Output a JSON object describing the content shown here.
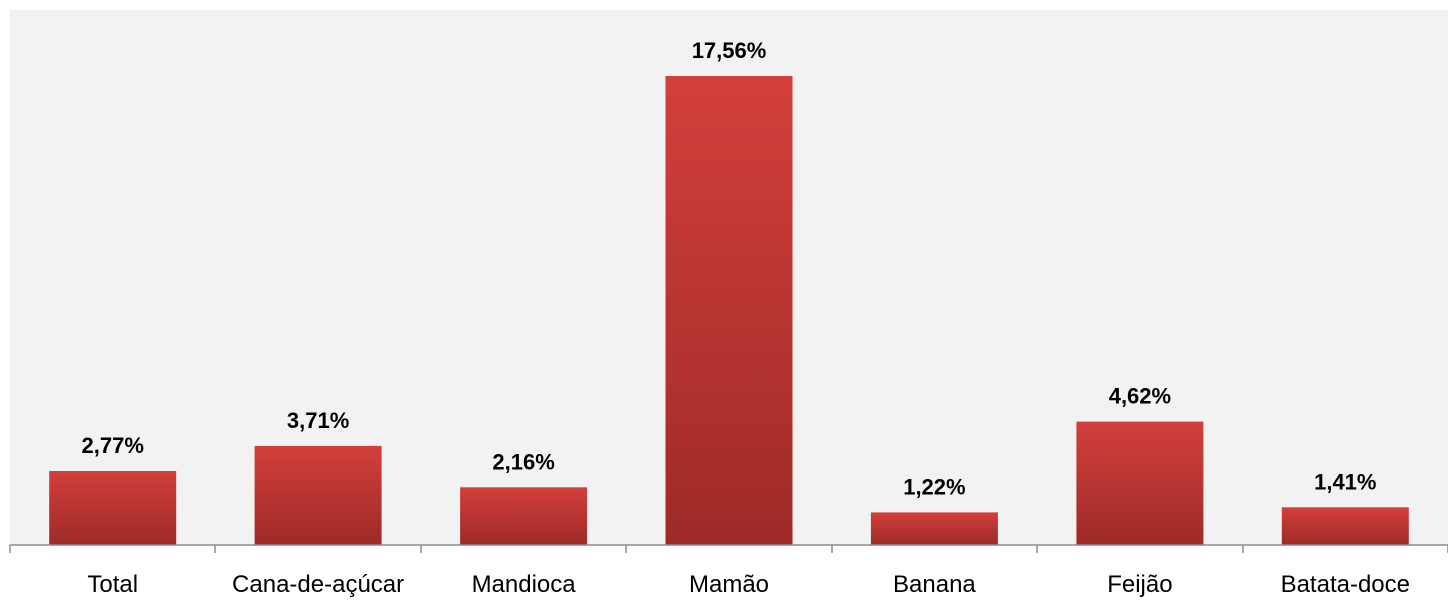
{
  "chart_data": {
    "type": "bar",
    "categories": [
      "Total",
      "Cana-de-açúcar",
      "Mandioca",
      "Mamão",
      "Banana",
      "Feijão",
      "Batata-doce"
    ],
    "values": [
      2.77,
      3.71,
      2.16,
      17.56,
      1.22,
      4.62,
      1.41
    ],
    "value_labels": [
      "2,77%",
      "3,71%",
      "2,16%",
      "17,56%",
      "1,22%",
      "4,62%",
      "1,41%"
    ],
    "unit": "%",
    "grid": false,
    "legend": "none",
    "ylim": [
      0,
      19
    ],
    "colors": {
      "plot_background": "#f2f2f2",
      "bar_top": "#d33f3c",
      "bar_bottom": "#9e2a27",
      "axis": "#8c8c8c"
    }
  }
}
